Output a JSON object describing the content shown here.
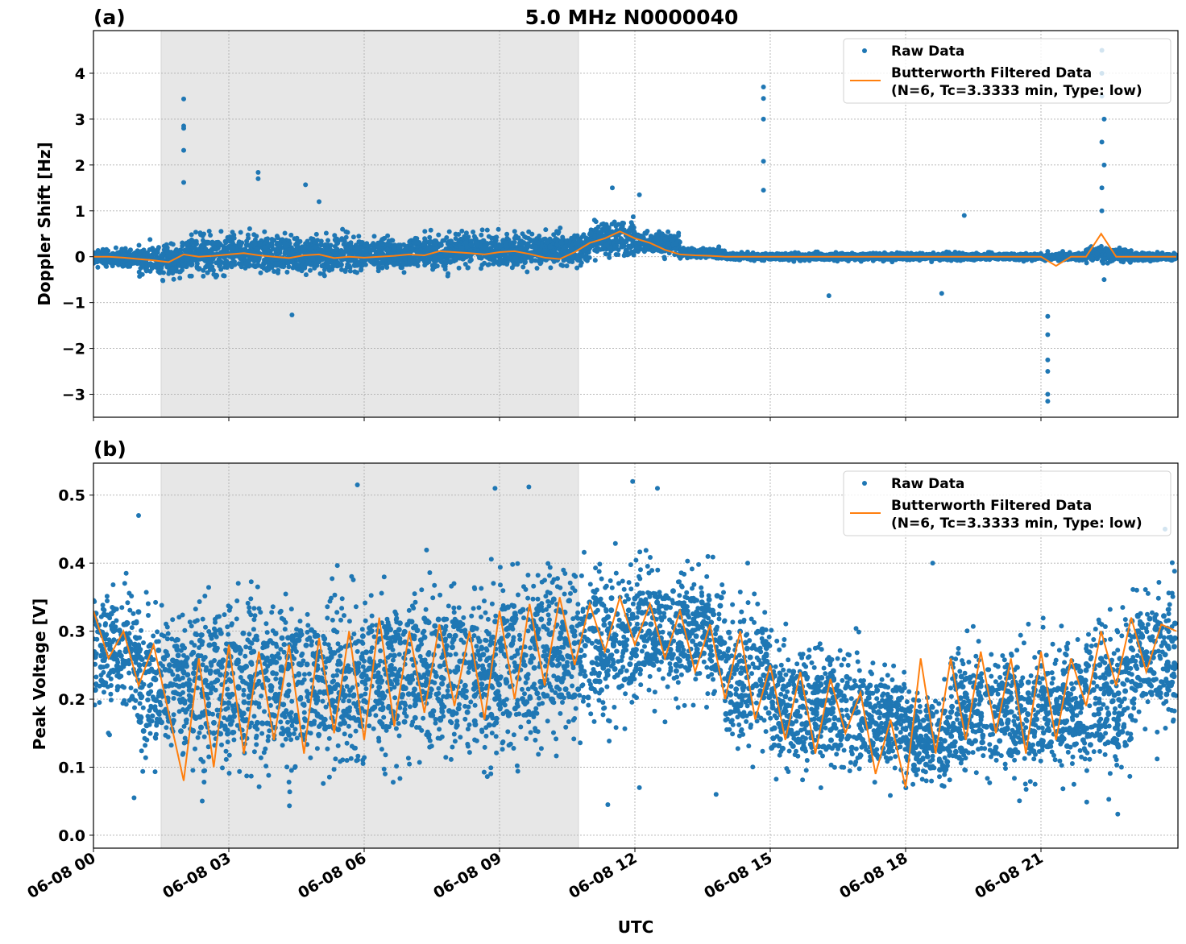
{
  "chart_data": [
    {
      "type": "scatter",
      "panel_label": "(a)",
      "title": "5.0 MHz N0000040",
      "xlabel": "",
      "ylabel": "Doppler Shift [Hz]",
      "xlim": [
        "06-08 00:00",
        "06-09 00:00"
      ],
      "ylim": [
        -3.5,
        4.93
      ],
      "yticks": [
        "−3",
        "−2",
        "−1",
        "0",
        "1",
        "2",
        "3",
        "4"
      ],
      "ytick_values": [
        -3,
        -2,
        -1,
        0,
        1,
        2,
        3,
        4
      ],
      "grid": true,
      "shaded_interval": [
        "06-08 01:30",
        "06-08 10:45"
      ],
      "legend_placement": "upper-right",
      "legend": [
        "Raw Data",
        "Butterworth Filtered Data",
        "(N=6, Tc=3.3333 min, Type: low)"
      ],
      "colors": {
        "raw": "#1f77b4",
        "filtered": "#ff7f0e",
        "shade": "#e7e7e7"
      },
      "raw_envelope_hourly": {
        "hour_start": [
          "00",
          "01",
          "02",
          "03",
          "04",
          "05",
          "06",
          "07",
          "08",
          "09",
          "10",
          "11",
          "12",
          "13",
          "14",
          "15",
          "16",
          "17",
          "18",
          "19",
          "20",
          "21",
          "22",
          "23"
        ],
        "low": [
          -0.3,
          -0.6,
          -0.6,
          -0.6,
          -0.6,
          -0.6,
          -0.5,
          -0.5,
          -0.4,
          -0.4,
          -0.4,
          -0.2,
          -0.1,
          -0.1,
          -0.12,
          -0.12,
          -0.12,
          -0.12,
          -0.12,
          -0.12,
          -0.12,
          -0.12,
          -0.2,
          -0.12
        ],
        "high": [
          0.25,
          0.5,
          0.7,
          0.7,
          0.7,
          0.7,
          0.6,
          0.7,
          0.7,
          0.7,
          0.7,
          1.0,
          0.7,
          0.25,
          0.12,
          0.12,
          0.12,
          0.12,
          0.12,
          0.12,
          0.12,
          0.12,
          0.3,
          0.12
        ]
      },
      "raw_outliers": [
        [
          "06-08 02:00",
          3.44
        ],
        [
          "06-08 02:00",
          2.85
        ],
        [
          "06-08 02:00",
          2.8
        ],
        [
          "06-08 02:00",
          2.32
        ],
        [
          "06-08 02:00",
          1.62
        ],
        [
          "06-08 03:39",
          1.84
        ],
        [
          "06-08 03:39",
          1.7
        ],
        [
          "06-08 04:24",
          -1.27
        ],
        [
          "06-08 04:42",
          1.57
        ],
        [
          "06-08 05:00",
          1.2
        ],
        [
          "06-08 11:30",
          1.5
        ],
        [
          "06-08 12:06",
          1.35
        ],
        [
          "06-08 14:51",
          3.7
        ],
        [
          "06-08 14:51",
          3.45
        ],
        [
          "06-08 14:51",
          3.0
        ],
        [
          "06-08 14:51",
          2.08
        ],
        [
          "06-08 14:51",
          1.45
        ],
        [
          "06-08 16:18",
          -0.85
        ],
        [
          "06-08 18:48",
          -0.8
        ],
        [
          "06-08 19:18",
          0.9
        ],
        [
          "06-08 21:09",
          -1.3
        ],
        [
          "06-08 21:09",
          -1.7
        ],
        [
          "06-08 21:09",
          -2.25
        ],
        [
          "06-08 21:09",
          -2.5
        ],
        [
          "06-08 21:09",
          -3.0
        ],
        [
          "06-08 21:09",
          -3.15
        ],
        [
          "06-08 22:21",
          4.5
        ],
        [
          "06-08 22:21",
          4.0
        ],
        [
          "06-08 22:21",
          3.5
        ],
        [
          "06-08 22:24",
          3.0
        ],
        [
          "06-08 22:21",
          2.5
        ],
        [
          "06-08 22:24",
          2.0
        ],
        [
          "06-08 22:21",
          1.5
        ],
        [
          "06-08 22:21",
          1.0
        ],
        [
          "06-08 22:24",
          -0.5
        ]
      ],
      "filtered": [
        0,
        0,
        -0.02,
        -0.05,
        -0.08,
        -0.12,
        0.05,
        0,
        0.02,
        0.05,
        0.08,
        0.03,
        0,
        -0.03,
        0.03,
        0.05,
        -0.03,
        0,
        -0.02,
        0,
        0.02,
        0.05,
        0.03,
        0.12,
        0.1,
        0.08,
        0.05,
        0.1,
        0.12,
        0.06,
        -0.02,
        -0.05,
        0.1,
        0.3,
        0.4,
        0.55,
        0.4,
        0.3,
        0.15,
        0.05,
        0.03,
        0.02,
        0,
        0,
        0,
        0,
        0,
        0,
        0,
        0,
        0,
        0,
        0,
        0,
        0,
        0,
        0,
        0,
        0,
        0,
        0,
        0,
        0,
        0,
        -0.2,
        0,
        0,
        0.5,
        0,
        0,
        0,
        0,
        0
      ]
    },
    {
      "type": "scatter",
      "panel_label": "(b)",
      "xlabel": "UTC",
      "ylabel": "Peak Voltage [V]",
      "xlim": [
        "06-08 00:00",
        "06-09 00:00"
      ],
      "ylim": [
        -0.019,
        0.547
      ],
      "yticks": [
        "0.0",
        "0.1",
        "0.2",
        "0.3",
        "0.4",
        "0.5"
      ],
      "ytick_values": [
        0,
        0.1,
        0.2,
        0.3,
        0.4,
        0.5
      ],
      "xticks": [
        "06-08 00",
        "06-08 03",
        "06-08 06",
        "06-08 09",
        "06-08 12",
        "06-08 15",
        "06-08 18",
        "06-08 21"
      ],
      "xtick_values": [
        "06-08 00:00",
        "06-08 03:00",
        "06-08 06:00",
        "06-08 09:00",
        "06-08 12:00",
        "06-08 15:00",
        "06-08 18:00",
        "06-08 21:00"
      ],
      "grid": true,
      "shaded_interval": [
        "06-08 01:30",
        "06-08 10:45"
      ],
      "legend_placement": "upper-right",
      "legend": [
        "Raw Data",
        "Butterworth Filtered Data",
        "(N=6, Tc=3.3333 min, Type: low)"
      ],
      "colors": {
        "raw": "#1f77b4",
        "filtered": "#ff7f0e",
        "shade": "#e7e7e7"
      },
      "raw_envelope_hourly": {
        "hour_start": [
          "00",
          "01",
          "02",
          "03",
          "04",
          "05",
          "06",
          "07",
          "08",
          "09",
          "10",
          "11",
          "12",
          "13",
          "14",
          "15",
          "16",
          "17",
          "18",
          "19",
          "20",
          "21",
          "22",
          "23"
        ],
        "low": [
          0.12,
          0.05,
          0.03,
          0.03,
          0.03,
          0.03,
          0.04,
          0.04,
          0.04,
          0.05,
          0.08,
          0.1,
          0.15,
          0.15,
          0.08,
          0.04,
          0.04,
          0.04,
          0.03,
          0.03,
          0.03,
          0.04,
          0.02,
          0.1
        ],
        "high": [
          0.42,
          0.38,
          0.42,
          0.42,
          0.42,
          0.42,
          0.43,
          0.44,
          0.44,
          0.46,
          0.47,
          0.46,
          0.45,
          0.44,
          0.4,
          0.33,
          0.33,
          0.3,
          0.25,
          0.33,
          0.33,
          0.34,
          0.38,
          0.42
        ]
      },
      "raw_outliers": [
        [
          "06-08 01:00",
          0.47
        ],
        [
          "06-08 05:51",
          0.515
        ],
        [
          "06-08 08:54",
          0.51
        ],
        [
          "06-08 09:39",
          0.512
        ],
        [
          "06-08 11:57",
          0.52
        ],
        [
          "06-08 12:30",
          0.51
        ],
        [
          "06-08 00:54",
          0.055
        ],
        [
          "06-08 11:24",
          0.045
        ],
        [
          "06-08 12:06",
          0.07
        ],
        [
          "06-08 13:48",
          0.06
        ],
        [
          "06-08 14:30",
          0.4
        ],
        [
          "06-08 18:36",
          0.4
        ],
        [
          "06-08 23:45",
          0.45
        ]
      ],
      "filtered": [
        0.33,
        0.26,
        0.3,
        0.22,
        0.28,
        0.18,
        0.08,
        0.26,
        0.1,
        0.28,
        0.12,
        0.27,
        0.14,
        0.28,
        0.12,
        0.29,
        0.15,
        0.3,
        0.14,
        0.32,
        0.16,
        0.3,
        0.18,
        0.31,
        0.19,
        0.3,
        0.17,
        0.33,
        0.2,
        0.34,
        0.22,
        0.35,
        0.25,
        0.34,
        0.27,
        0.35,
        0.28,
        0.34,
        0.26,
        0.33,
        0.24,
        0.31,
        0.2,
        0.3,
        0.17,
        0.25,
        0.14,
        0.24,
        0.12,
        0.23,
        0.15,
        0.21,
        0.09,
        0.17,
        0.07,
        0.26,
        0.12,
        0.26,
        0.14,
        0.27,
        0.15,
        0.26,
        0.12,
        0.27,
        0.14,
        0.26,
        0.19,
        0.3,
        0.22,
        0.32,
        0.24,
        0.31,
        0.3
      ]
    }
  ],
  "filtered_x_step": "20 min"
}
